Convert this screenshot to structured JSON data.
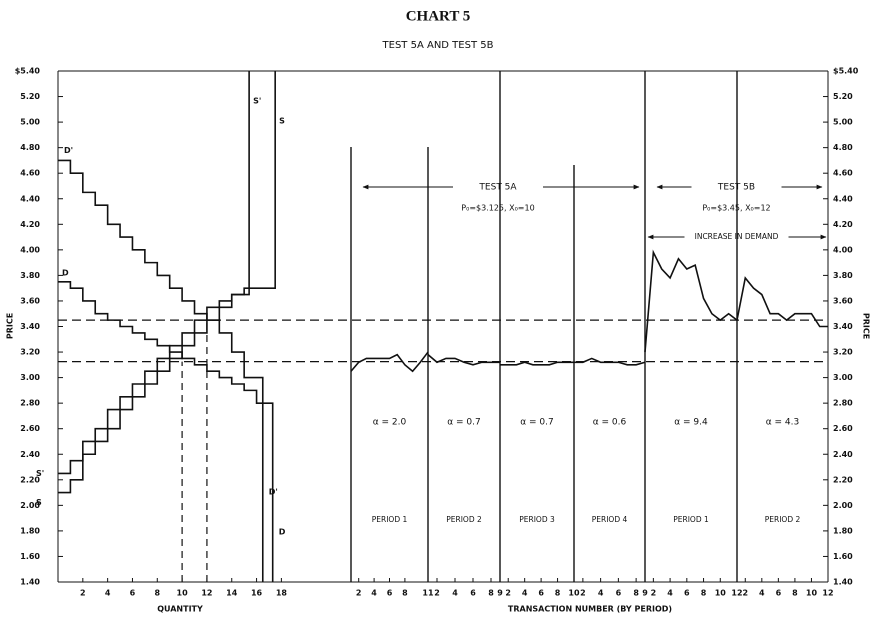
{
  "chart_data": [
    {
      "type": "step",
      "title": "CHART 5",
      "subtitle": "TEST 5A AND TEST 5B",
      "xlabel": "QUANTITY",
      "ylabel": "PRICE",
      "xlim": [
        0,
        19.5
      ],
      "xticks": [
        2,
        4,
        6,
        8,
        10,
        12,
        14,
        16,
        18
      ],
      "ylim": [
        1.4,
        5.4
      ],
      "yticks": [
        {
          "value": 1.4,
          "label": "1.40"
        },
        {
          "value": 1.6,
          "label": "1.60"
        },
        {
          "value": 1.8,
          "label": "1.80"
        },
        {
          "value": 2.0,
          "label": "2.00"
        },
        {
          "value": 2.2,
          "label": "2.20"
        },
        {
          "value": 2.4,
          "label": "2.40"
        },
        {
          "value": 2.6,
          "label": "2.60"
        },
        {
          "value": 2.8,
          "label": "2.80"
        },
        {
          "value": 3.0,
          "label": "3.00"
        },
        {
          "value": 3.2,
          "label": "3.20"
        },
        {
          "value": 3.4,
          "label": "3.40"
        },
        {
          "value": 3.6,
          "label": "3.60"
        },
        {
          "value": 3.8,
          "label": "3.80"
        },
        {
          "value": 4.0,
          "label": "4.00"
        },
        {
          "value": 4.2,
          "label": "4.20"
        },
        {
          "value": 4.4,
          "label": "4.40"
        },
        {
          "value": 4.6,
          "label": "4.60"
        },
        {
          "value": 4.8,
          "label": "4.80"
        },
        {
          "value": 5.0,
          "label": "5.00"
        },
        {
          "value": 5.2,
          "label": "5.20"
        },
        {
          "value": 5.4,
          "label": "$5.40"
        }
      ],
      "hlines": [
        3.45,
        3.125
      ],
      "vlines": [
        12,
        10
      ],
      "series": [
        {
          "name": "D'",
          "color": "#111111",
          "x": [
            0,
            1,
            2,
            3,
            4,
            5,
            6,
            7,
            8,
            9,
            10,
            11,
            12,
            13,
            14,
            15,
            16.5
          ],
          "values": [
            4.7,
            4.6,
            4.45,
            4.35,
            4.2,
            4.1,
            4.0,
            3.9,
            3.8,
            3.7,
            3.6,
            3.5,
            3.45,
            3.35,
            3.2,
            3.0,
            1.4
          ]
        },
        {
          "name": "D",
          "color": "#111111",
          "x": [
            0,
            1,
            2,
            3,
            4,
            5,
            6,
            7,
            8,
            9,
            10,
            11,
            12,
            13,
            14,
            15,
            16,
            17.3
          ],
          "values": [
            3.75,
            3.7,
            3.6,
            3.5,
            3.45,
            3.4,
            3.35,
            3.3,
            3.25,
            3.2,
            3.15,
            3.1,
            3.05,
            3.0,
            2.95,
            2.9,
            2.8,
            1.4
          ]
        },
        {
          "name": "S'",
          "color": "#111111",
          "x": [
            0,
            1,
            2,
            3,
            4,
            5,
            6,
            7,
            8,
            9,
            10,
            11,
            12,
            13,
            14,
            15.4
          ],
          "values": [
            2.25,
            2.35,
            2.5,
            2.6,
            2.75,
            2.85,
            2.95,
            3.05,
            3.15,
            3.25,
            3.35,
            3.45,
            3.55,
            3.6,
            3.65,
            5.4
          ]
        },
        {
          "name": "S",
          "color": "#111111",
          "x": [
            0,
            1,
            2,
            3,
            4,
            5,
            6,
            7,
            8,
            9,
            10,
            11,
            12,
            13,
            14,
            15,
            17.5
          ],
          "values": [
            2.1,
            2.2,
            2.4,
            2.5,
            2.6,
            2.75,
            2.85,
            2.95,
            3.05,
            3.15,
            3.25,
            3.35,
            3.45,
            3.55,
            3.65,
            3.7,
            5.4
          ]
        }
      ]
    },
    {
      "type": "period-line",
      "xlabel": "TRANSACTION NUMBER (BY PERIOD)",
      "ylabel": "PRICE",
      "color": "#111111",
      "ylim": [
        1.4,
        5.4
      ],
      "yticks": [
        {
          "value": 1.4,
          "label": "1.40"
        },
        {
          "value": 1.6,
          "label": "1.60"
        },
        {
          "value": 1.8,
          "label": "1.80"
        },
        {
          "value": 2.0,
          "label": "2.00"
        },
        {
          "value": 2.2,
          "label": "2.20"
        },
        {
          "value": 2.4,
          "label": "2.40"
        },
        {
          "value": 2.6,
          "label": "2.60"
        },
        {
          "value": 2.8,
          "label": "2.80"
        },
        {
          "value": 3.0,
          "label": "3.00"
        },
        {
          "value": 3.2,
          "label": "3.20"
        },
        {
          "value": 3.4,
          "label": "3.40"
        },
        {
          "value": 3.6,
          "label": "3.60"
        },
        {
          "value": 3.8,
          "label": "3.80"
        },
        {
          "value": 4.0,
          "label": "4.00"
        },
        {
          "value": 4.2,
          "label": "4.20"
        },
        {
          "value": 4.4,
          "label": "4.40"
        },
        {
          "value": 4.6,
          "label": "4.60"
        },
        {
          "value": 4.8,
          "label": "4.80"
        },
        {
          "value": 5.0,
          "label": "5.00"
        },
        {
          "value": 5.2,
          "label": "5.20"
        },
        {
          "value": 5.4,
          "label": "$5.40"
        }
      ],
      "groups": [
        {
          "name": "TEST 5A",
          "note": "P₀=$3.125, X₀=10",
          "periods": [
            {
              "name": "PERIOD 1",
              "alpha": "α = 2.0",
              "xlim": [
                1,
                11
              ],
              "xticks": [
                2,
                4,
                6,
                8,
                11
              ],
              "x": [
                1,
                2,
                3,
                4,
                5,
                6,
                7,
                8,
                9,
                10,
                11
              ],
              "values": [
                3.05,
                3.12,
                3.15,
                3.15,
                3.15,
                3.15,
                3.18,
                3.1,
                3.05,
                3.12,
                3.2
              ]
            },
            {
              "name": "PERIOD 2",
              "alpha": "α = 0.7",
              "xlim": [
                1,
                9
              ],
              "xticks": [
                2,
                4,
                6,
                8,
                9
              ],
              "x": [
                1,
                2,
                3,
                4,
                5,
                6,
                7,
                8,
                9
              ],
              "values": [
                3.18,
                3.12,
                3.15,
                3.15,
                3.12,
                3.1,
                3.12,
                3.12,
                3.12
              ]
            },
            {
              "name": "PERIOD 3",
              "alpha": "α = 0.7",
              "xlim": [
                1,
                10
              ],
              "xticks": [
                2,
                4,
                6,
                8,
                10
              ],
              "x": [
                1,
                2,
                3,
                4,
                5,
                6,
                7,
                8,
                9,
                10
              ],
              "values": [
                3.1,
                3.1,
                3.1,
                3.12,
                3.1,
                3.1,
                3.1,
                3.12,
                3.12,
                3.12
              ]
            },
            {
              "name": "PERIOD 4",
              "alpha": "α = 0.6",
              "xlim": [
                1,
                9
              ],
              "xticks": [
                2,
                4,
                6,
                8,
                9
              ],
              "x": [
                1,
                2,
                3,
                4,
                5,
                6,
                7,
                8,
                9
              ],
              "values": [
                3.12,
                3.12,
                3.15,
                3.12,
                3.12,
                3.12,
                3.1,
                3.1,
                3.12
              ]
            }
          ]
        },
        {
          "name": "TEST 5B",
          "note": "P₀=$3.45, X₀=12",
          "annotation": "INCREASE IN DEMAND",
          "periods": [
            {
              "name": "PERIOD 1",
              "alpha": "α = 9.4",
              "xlim": [
                1,
                12
              ],
              "xticks": [
                2,
                4,
                6,
                8,
                10,
                12
              ],
              "x": [
                1,
                2,
                3,
                4,
                5,
                6,
                7,
                8,
                9,
                10,
                11,
                12
              ],
              "values": [
                3.2,
                3.98,
                3.85,
                3.78,
                3.93,
                3.85,
                3.88,
                3.62,
                3.5,
                3.45,
                3.5,
                3.45
              ]
            },
            {
              "name": "PERIOD 2",
              "alpha": "α = 4.3",
              "xlim": [
                1,
                12
              ],
              "xticks": [
                2,
                4,
                6,
                8,
                10,
                12
              ],
              "x": [
                1,
                2,
                3,
                4,
                5,
                6,
                7,
                8,
                9,
                10,
                11,
                12
              ],
              "values": [
                3.45,
                3.78,
                3.7,
                3.65,
                3.5,
                3.5,
                3.45,
                3.5,
                3.5,
                3.5,
                3.4,
                3.4
              ]
            }
          ]
        }
      ]
    }
  ]
}
